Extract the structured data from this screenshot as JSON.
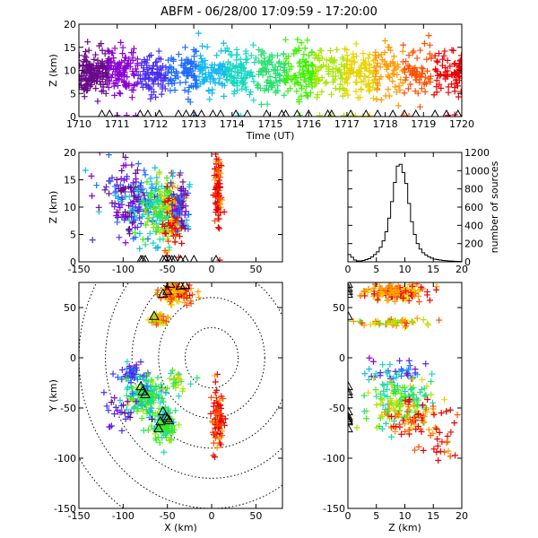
{
  "title": "ABFM - 06/28/00 17:09:59 - 17:20:00",
  "colors": {
    "sequence": [
      "#000000",
      "#6a0a8a",
      "#8a00d6",
      "#4a2ef0",
      "#1e6cff",
      "#14b9f0",
      "#14d8c0",
      "#28e070",
      "#3ef000",
      "#a6e600",
      "#e8d400",
      "#ff9a00",
      "#ff5000",
      "#ee0000"
    ],
    "station": "#000000"
  },
  "chart_data": [
    {
      "id": "time_height",
      "type": "scatter",
      "xlabel": "Time (UT)",
      "ylabel": "Z (km)",
      "xlim": [
        1710,
        1720
      ],
      "ylim": [
        0,
        20
      ],
      "xticks": [
        1710,
        1711,
        1712,
        1713,
        1714,
        1715,
        1716,
        1717,
        1718,
        1719,
        1720
      ],
      "xtick_labels": [
        "1710",
        "1711",
        "1712",
        "1713",
        "1714",
        "1715",
        "1716",
        "1717",
        "1718",
        "1719",
        "1720"
      ],
      "yticks": [
        0,
        5,
        10,
        15,
        20
      ],
      "ytick_labels": [
        "0",
        "5",
        "10",
        "15",
        "20"
      ],
      "marker": "plus colored by time",
      "clusters": [
        {
          "x": 1710.3,
          "y": 9.5,
          "sx": 0.25,
          "sy": 2.2,
          "n": 140
        },
        {
          "x": 1711.0,
          "y": 9.5,
          "sx": 0.3,
          "sy": 2.5,
          "n": 120
        },
        {
          "x": 1712.0,
          "y": 9.0,
          "sx": 0.35,
          "sy": 2.5,
          "n": 110
        },
        {
          "x": 1713.0,
          "y": 9.5,
          "sx": 0.35,
          "sy": 2.5,
          "n": 110
        },
        {
          "x": 1714.0,
          "y": 9.5,
          "sx": 0.35,
          "sy": 2.5,
          "n": 110
        },
        {
          "x": 1715.0,
          "y": 9.5,
          "sx": 0.35,
          "sy": 2.8,
          "n": 110
        },
        {
          "x": 1716.0,
          "y": 9.5,
          "sx": 0.35,
          "sy": 3.0,
          "n": 110
        },
        {
          "x": 1717.0,
          "y": 9.5,
          "sx": 0.35,
          "sy": 2.8,
          "n": 100
        },
        {
          "x": 1718.0,
          "y": 9.5,
          "sx": 0.35,
          "sy": 2.8,
          "n": 100
        },
        {
          "x": 1719.2,
          "y": 9.5,
          "sx": 0.4,
          "sy": 2.5,
          "n": 100
        },
        {
          "x": 1719.9,
          "y": 9.5,
          "sx": 0.12,
          "sy": 2.5,
          "n": 40
        },
        {
          "x": 1715.0,
          "y": 0.2,
          "sx": 4.6,
          "sy": 0.1,
          "n": 25
        }
      ],
      "stations": [
        {
          "x": 1710.6,
          "y": 0
        },
        {
          "x": 1710.8,
          "y": 0
        },
        {
          "x": 1711.6,
          "y": 0
        },
        {
          "x": 1711.8,
          "y": 0
        },
        {
          "x": 1712.1,
          "y": 0
        },
        {
          "x": 1712.6,
          "y": 0
        },
        {
          "x": 1712.8,
          "y": 0
        },
        {
          "x": 1713.0,
          "y": 0
        },
        {
          "x": 1713.2,
          "y": 0
        },
        {
          "x": 1713.5,
          "y": 0
        },
        {
          "x": 1713.7,
          "y": 0
        },
        {
          "x": 1714.1,
          "y": 0
        },
        {
          "x": 1714.4,
          "y": 0
        },
        {
          "x": 1714.9,
          "y": 0
        },
        {
          "x": 1715.3,
          "y": 0
        },
        {
          "x": 1715.4,
          "y": 0
        },
        {
          "x": 1715.7,
          "y": 0
        },
        {
          "x": 1716.0,
          "y": 0
        },
        {
          "x": 1716.5,
          "y": 0
        },
        {
          "x": 1716.6,
          "y": 0
        },
        {
          "x": 1717.1,
          "y": 0
        },
        {
          "x": 1717.5,
          "y": 0
        },
        {
          "x": 1717.8,
          "y": 0
        },
        {
          "x": 1718.2,
          "y": 0
        },
        {
          "x": 1718.5,
          "y": 0
        },
        {
          "x": 1718.8,
          "y": 0
        },
        {
          "x": 1719.3,
          "y": 0
        },
        {
          "x": 1719.6,
          "y": 0
        },
        {
          "x": 1719.9,
          "y": 0
        }
      ]
    },
    {
      "id": "x_height",
      "type": "scatter",
      "xlabel": "",
      "ylabel": "Z (km)",
      "xlim": [
        -150,
        80
      ],
      "ylim": [
        0,
        20
      ],
      "xticks": [
        -150,
        -100,
        -50,
        0,
        50
      ],
      "xtick_labels": [
        "-150",
        "-100",
        "-50",
        "0",
        "50"
      ],
      "yticks": [
        0,
        5,
        10,
        15,
        20
      ],
      "ytick_labels": [
        "0",
        "5",
        "10",
        "15",
        "20"
      ],
      "marker": "plus colored by time",
      "clusters": [
        {
          "x": -95,
          "y": 11,
          "sx": 12,
          "sy": 3,
          "n": 90,
          "t": 0.1
        },
        {
          "x": -80,
          "y": 10,
          "sx": 10,
          "sy": 3,
          "n": 60,
          "t": 0.3
        },
        {
          "x": -65,
          "y": 9,
          "sx": 8,
          "sy": 3,
          "n": 70,
          "t": 0.5
        },
        {
          "x": -50,
          "y": 9,
          "sx": 7,
          "sy": 3,
          "n": 110,
          "t": 0.6
        },
        {
          "x": -42,
          "y": 8,
          "sx": 6,
          "sy": 3,
          "n": 90,
          "t": 0.9
        },
        {
          "x": -35,
          "y": 10,
          "sx": 5,
          "sy": 2.5,
          "n": 60,
          "t": 0.2
        },
        {
          "x": 7,
          "y": 13,
          "sx": 2,
          "sy": 4,
          "n": 90,
          "t": 0.95
        },
        {
          "x": -110,
          "y": 13,
          "sx": 15,
          "sy": 4,
          "n": 25,
          "t": 0.2
        }
      ],
      "stations": [
        {
          "x": -80,
          "y": 0
        },
        {
          "x": -78,
          "y": 0
        },
        {
          "x": -75,
          "y": 0
        },
        {
          "x": -55,
          "y": 0
        },
        {
          "x": -52,
          "y": 0
        },
        {
          "x": -48,
          "y": 0
        },
        {
          "x": -45,
          "y": 0
        },
        {
          "x": -42,
          "y": 0
        },
        {
          "x": -35,
          "y": 0
        },
        {
          "x": -30,
          "y": 0
        },
        {
          "x": -20,
          "y": 0
        },
        {
          "x": 5,
          "y": 0
        }
      ]
    },
    {
      "id": "height_histogram",
      "type": "line",
      "xlabel": "",
      "ylabel": "number of sources",
      "xlim": [
        0,
        20
      ],
      "ylim": [
        0,
        1200
      ],
      "xticks": [
        0,
        5,
        10,
        15,
        20
      ],
      "xtick_labels": [
        "0",
        "5",
        "10",
        "15",
        "20"
      ],
      "yticks": [
        0,
        200,
        400,
        600,
        800,
        1000,
        1200
      ],
      "ytick_labels": [
        "0",
        "200",
        "400",
        "600",
        "800",
        "1000",
        "1200"
      ],
      "x": [
        0,
        0.5,
        1,
        1.5,
        2,
        2.5,
        3,
        3.5,
        4,
        4.5,
        5,
        5.5,
        6,
        6.5,
        7,
        7.5,
        8,
        8.5,
        9,
        9.5,
        10,
        10.5,
        11,
        11.5,
        12,
        12.5,
        13,
        13.5,
        14,
        14.5,
        15,
        15.5,
        16,
        16.5,
        17,
        17.5,
        18,
        18.5,
        19,
        19.5
      ],
      "values": [
        80,
        50,
        20,
        10,
        10,
        15,
        25,
        35,
        55,
        80,
        110,
        160,
        230,
        330,
        480,
        660,
        870,
        1050,
        1070,
        980,
        860,
        640,
        440,
        300,
        200,
        140,
        100,
        75,
        55,
        40,
        30,
        25,
        20,
        15,
        12,
        10,
        8,
        6,
        5,
        4
      ]
    },
    {
      "id": "plan_view",
      "type": "scatter",
      "xlabel": "X (km)",
      "ylabel": "Y (km)",
      "xlim": [
        -150,
        80
      ],
      "ylim": [
        -150,
        75
      ],
      "xticks": [
        -150,
        -100,
        -50,
        0,
        50
      ],
      "xtick_labels": [
        "-150",
        "-100",
        "-50",
        "0",
        "50"
      ],
      "yticks": [
        -150,
        -100,
        -50,
        0,
        50
      ],
      "ytick_labels": [
        "-150",
        "-100",
        "-50",
        "0",
        "50"
      ],
      "range_circles_km": [
        30,
        60,
        90,
        120,
        150,
        180
      ],
      "marker": "plus colored by time",
      "clusters": [
        {
          "x": -42,
          "y": 65,
          "sx": 10,
          "sy": 5,
          "n": 110,
          "t": 0.85
        },
        {
          "x": -60,
          "y": 38,
          "sx": 5,
          "sy": 3,
          "n": 35,
          "t": 0.75
        },
        {
          "x": 7,
          "y": -60,
          "sx": 3,
          "sy": 18,
          "n": 90,
          "t": 0.95
        },
        {
          "x": -90,
          "y": -15,
          "sx": 8,
          "sy": 5,
          "n": 50,
          "t": 0.25
        },
        {
          "x": -80,
          "y": -40,
          "sx": 10,
          "sy": 8,
          "n": 90,
          "t": 0.5
        },
        {
          "x": -70,
          "y": -35,
          "sx": 8,
          "sy": 8,
          "n": 50,
          "t": 0.45
        },
        {
          "x": -55,
          "y": -65,
          "sx": 8,
          "sy": 10,
          "n": 100,
          "t": 0.5
        },
        {
          "x": -40,
          "y": -25,
          "sx": 6,
          "sy": 6,
          "n": 30,
          "t": 0.6
        },
        {
          "x": -100,
          "y": -55,
          "sx": 12,
          "sy": 8,
          "n": 25,
          "t": 0.15
        }
      ],
      "stations": [
        {
          "x": -47,
          "y": 72
        },
        {
          "x": -35,
          "y": 70
        },
        {
          "x": -30,
          "y": 71
        },
        {
          "x": -50,
          "y": 65
        },
        {
          "x": -55,
          "y": 62
        },
        {
          "x": -65,
          "y": 40
        },
        {
          "x": -80,
          "y": -30
        },
        {
          "x": -78,
          "y": -35
        },
        {
          "x": -75,
          "y": -38
        },
        {
          "x": -55,
          "y": -55
        },
        {
          "x": -52,
          "y": -60
        },
        {
          "x": -50,
          "y": -62
        },
        {
          "x": -48,
          "y": -64
        },
        {
          "x": -60,
          "y": -72
        },
        {
          "x": -58,
          "y": -65
        }
      ]
    },
    {
      "id": "height_y",
      "type": "scatter",
      "xlabel": "Z (km)",
      "ylabel": "",
      "xlim": [
        0,
        20
      ],
      "ylim": [
        -150,
        75
      ],
      "xticks": [
        0,
        5,
        10,
        15,
        20
      ],
      "xtick_labels": [
        "0",
        "5",
        "10",
        "15",
        "20"
      ],
      "yticks": [
        -150,
        -100,
        -50,
        0,
        50
      ],
      "ytick_labels": [
        "-150",
        "-100",
        "-50",
        "0",
        "50"
      ],
      "marker": "plus colored by time",
      "clusters": [
        {
          "x": 9,
          "y": 65,
          "sx": 3,
          "sy": 4,
          "n": 130,
          "t": 0.85
        },
        {
          "x": 8,
          "y": 35,
          "sx": 3,
          "sy": 2,
          "n": 45,
          "t": 0.75
        },
        {
          "x": 9,
          "y": -15,
          "sx": 3,
          "sy": 6,
          "n": 45,
          "t": 0.3
        },
        {
          "x": 9,
          "y": -45,
          "sx": 3,
          "sy": 12,
          "n": 130,
          "t": 0.55
        },
        {
          "x": 11,
          "y": -60,
          "sx": 3,
          "sy": 10,
          "n": 70,
          "t": 0.9
        },
        {
          "x": 17,
          "y": -85,
          "sx": 2,
          "sy": 10,
          "n": 25,
          "t": 0.95
        }
      ],
      "stations": [
        {
          "x": 0,
          "y": 72
        },
        {
          "x": 0,
          "y": 68
        },
        {
          "x": 0,
          "y": 65
        },
        {
          "x": 0,
          "y": 62
        },
        {
          "x": 0,
          "y": 40
        },
        {
          "x": 0,
          "y": -30
        },
        {
          "x": 0,
          "y": -35
        },
        {
          "x": 0,
          "y": -38
        },
        {
          "x": 0,
          "y": -55
        },
        {
          "x": 0,
          "y": -60
        },
        {
          "x": 0,
          "y": -62
        },
        {
          "x": 0,
          "y": -64
        },
        {
          "x": 0,
          "y": -65
        },
        {
          "x": 0,
          "y": -72
        }
      ]
    }
  ]
}
